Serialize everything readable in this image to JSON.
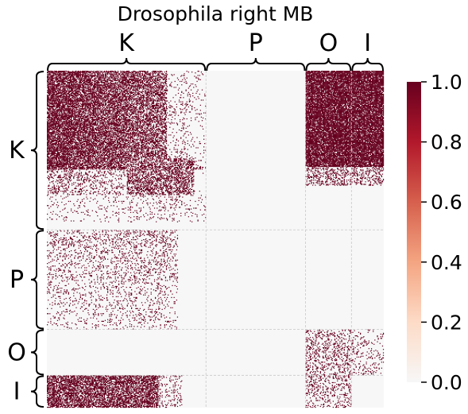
{
  "chart_data": {
    "type": "heatmap",
    "title": "Drosophila right MB",
    "xlabel": "",
    "ylabel": "",
    "groups": [
      {
        "name": "K",
        "start": 0,
        "end": 187
      },
      {
        "name": "P",
        "start": 187,
        "end": 304
      },
      {
        "name": "O",
        "start": 304,
        "end": 358
      },
      {
        "name": "I",
        "start": 358,
        "end": 396
      }
    ],
    "matrix_size": 396,
    "value_range": [
      0,
      1
    ],
    "colorbar": {
      "ticks": [
        "0.0",
        "0.2",
        "0.4",
        "0.6",
        "0.8",
        "1.0"
      ],
      "values": [
        0.0,
        0.2,
        0.4,
        0.6,
        0.8,
        1.0
      ],
      "cmap": "RdBu_r (upper half)",
      "colors": [
        "#f7f7f7",
        "#fddbc7",
        "#f4a582",
        "#d6604d",
        "#b2182b",
        "#67001f"
      ]
    },
    "block_density": {
      "K": {
        "K": 0.45,
        "P": 0.0,
        "O": 0.75,
        "I": 0.55
      },
      "P": {
        "K": 0.18,
        "P": 0.0,
        "O": 0.0,
        "I": 0.0
      },
      "O": {
        "K": 0.0,
        "P": 0.0,
        "O": 0.22,
        "I": 0.12
      },
      "I": {
        "K": 0.55,
        "P": 0.0,
        "O": 0.18,
        "I": 0.0
      }
    },
    "grid": true,
    "legend_position": "right"
  }
}
